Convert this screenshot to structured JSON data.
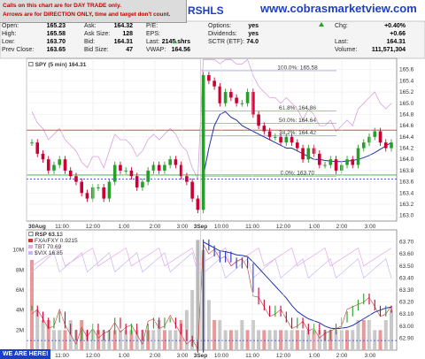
{
  "watermark": "www.cobrasmarketview.com",
  "symbol_fragment": "RSHLS",
  "notes": [
    "Calls on this chart are for DAY TRADE only.",
    "Arrows are for DIRECTION ONLY, time and target don't count."
  ],
  "we_are_here": "WE ARE HERE!",
  "quote": {
    "col1": [
      {
        "label": "Open:",
        "value": "165.23"
      },
      {
        "label": "High:",
        "value": "165.58"
      },
      {
        "label": "Low:",
        "value": "163.70"
      },
      {
        "label": "Prev Close:",
        "value": "163.65"
      }
    ],
    "col2": [
      {
        "label": "Ask:",
        "value": "164.32"
      },
      {
        "label": "Ask Size:",
        "value": "128"
      },
      {
        "label": "Bid:",
        "value": "164.31"
      },
      {
        "label": "Bid Size:",
        "value": "47"
      }
    ],
    "col3": [
      {
        "label": "P/E:",
        "value": ""
      },
      {
        "label": "EPS:",
        "value": ""
      },
      {
        "label": "Last:",
        "value": "2145 shrs"
      },
      {
        "label": "VWAP:",
        "value": "164.56"
      }
    ],
    "col4": [
      {
        "label": "Options:",
        "value": "yes"
      },
      {
        "label": "Dividends:",
        "value": "yes"
      },
      {
        "label": "SCTR (ETF):",
        "value": "74.0"
      }
    ],
    "col5": [
      {
        "label": "Chg:",
        "value": "+0.40%"
      },
      {
        "label": "",
        "value": "+0.66"
      },
      {
        "label": "Last:",
        "value": "164.31"
      },
      {
        "label": "Volume:",
        "value": "111,571,304"
      }
    ]
  },
  "colors": {
    "up": "#2a9d2a",
    "down": "#cc0033",
    "ma": "#2233aa",
    "upper_band": "#d9a0d9",
    "fib": "#7a8cc9",
    "hline_red": "#cc3333",
    "hline_green": "#33aa33",
    "hline_blue": "#3344cc",
    "rsp": "#000000",
    "fxa": "#cc3333",
    "tbt": "#e6a6e6",
    "vix": "#c8b8f0"
  },
  "chart_data": [
    {
      "type": "line",
      "title": "SPY (5 min) 164.31",
      "days": [
        "30Aug",
        "3Sep"
      ],
      "x_ticks": [
        "30Aug",
        "11:00",
        "12:00",
        "1:00",
        "2:00",
        "3:00",
        "3Sep",
        "10:00",
        "11:00",
        "12:00",
        "1:00",
        "2:00",
        "3:00"
      ],
      "ylim": [
        162.9,
        165.8
      ],
      "y_ticks": [
        163.0,
        163.2,
        163.4,
        163.6,
        163.8,
        164.0,
        164.2,
        164.4,
        164.6,
        164.8,
        165.0,
        165.2,
        165.4,
        165.6
      ],
      "series": [
        {
          "name": "SPY",
          "values": [
            164.3,
            164.1,
            164.0,
            163.8,
            163.9,
            164.0,
            163.8,
            163.7,
            163.6,
            163.4,
            163.3,
            163.5,
            163.5,
            163.3,
            163.6,
            163.9,
            163.8,
            163.8,
            163.7,
            163.5,
            163.6,
            163.8,
            163.9,
            163.8,
            163.9,
            164.0,
            163.9,
            163.7,
            163.6,
            163.3,
            163.1,
            165.5,
            165.4,
            165.3,
            165.0,
            165.2,
            165.1,
            165.0,
            165.0,
            165.2,
            164.8,
            164.6,
            164.5,
            164.4,
            164.4,
            164.3,
            164.4,
            164.3,
            164.2,
            164.0,
            164.2,
            164.1,
            163.9,
            163.9,
            164.0,
            163.8,
            163.9,
            164.0,
            163.9,
            164.2,
            164.3,
            164.4,
            164.5,
            164.3,
            164.2,
            164.3
          ]
        }
      ],
      "ma_values": [
        null,
        null,
        null,
        null,
        null,
        null,
        null,
        null,
        null,
        null,
        null,
        null,
        null,
        null,
        null,
        null,
        null,
        null,
        null,
        null,
        null,
        null,
        null,
        null,
        null,
        null,
        null,
        null,
        null,
        null,
        null,
        163.7,
        164.2,
        164.6,
        164.8,
        164.85,
        164.75,
        164.7,
        164.6,
        164.55,
        164.5,
        164.45,
        164.4,
        164.35,
        164.3,
        164.25,
        164.2,
        164.2,
        164.15,
        164.1,
        164.05,
        164.0,
        164.0,
        163.98,
        163.97,
        163.96,
        163.96,
        163.97,
        163.98,
        164.0,
        164.03,
        164.07,
        164.12,
        164.18,
        164.24,
        164.3
      ],
      "hlines": [
        {
          "value": 164.52,
          "color": "red"
        },
        {
          "value": 163.72,
          "color": "green"
        },
        {
          "value": 163.65,
          "color": "blue"
        }
      ],
      "fib_levels": [
        {
          "label": "100.0%: 165.58",
          "value": 165.58
        },
        {
          "label": "61.8%: 164.86",
          "value": 164.86
        },
        {
          "label": "50.0%: 164.64",
          "value": 164.64
        },
        {
          "label": "38.2%: 164.42",
          "value": 164.42
        },
        {
          "label": "0.0%: 163.70",
          "value": 163.7
        }
      ]
    },
    {
      "type": "line",
      "title": "RSP 63.13",
      "legend": [
        "FXA/FXY 0.9215",
        "TBT 70.69",
        "$VIX 16.85"
      ],
      "ylim": [
        62.8,
        63.8
      ],
      "y_ticks": [
        62.9,
        63.0,
        63.1,
        63.2,
        63.3,
        63.4,
        63.5,
        63.6,
        63.7
      ],
      "volume_ticks": [
        "2M",
        "4M",
        "6M",
        "8M",
        "10M"
      ],
      "volume_max": 12,
      "x_ticks": [
        "30Aug",
        "11:00",
        "12:00",
        "1:00",
        "2:00",
        "3:00",
        "3Sep",
        "10:00",
        "11:00",
        "12:00",
        "1:00",
        "2:00",
        "3:00"
      ],
      "rsp_values": [
        63.15,
        63.1,
        63.05,
        63.0,
        63.05,
        63.1,
        63.0,
        62.95,
        62.9,
        62.95,
        62.9,
        63.0,
        62.95,
        62.9,
        62.95,
        63.05,
        63.0,
        62.95,
        63.0,
        62.95,
        62.9,
        63.0,
        63.05,
        63.0,
        63.05,
        63.05,
        63.0,
        62.95,
        62.9,
        62.85,
        62.8,
        63.7,
        63.65,
        63.6,
        63.55,
        63.6,
        63.55,
        63.5,
        63.55,
        63.5,
        63.3,
        63.2,
        63.15,
        63.1,
        63.15,
        63.1,
        63.05,
        63.0,
        63.05,
        63.0,
        62.95,
        63.0,
        62.95,
        62.9,
        62.95,
        63.0,
        63.05,
        63.1,
        63.15,
        63.2,
        63.25,
        63.2,
        63.15,
        63.1,
        63.15,
        63.13
      ],
      "volume": [
        9,
        4,
        3,
        3,
        2,
        2,
        2,
        3,
        2,
        3,
        2,
        2,
        2,
        2,
        2,
        2,
        2,
        2,
        2,
        2,
        2,
        2,
        2,
        3,
        2,
        2,
        2,
        3,
        4,
        6,
        11,
        10,
        5,
        3,
        3,
        2,
        2,
        2,
        3,
        2,
        3,
        2,
        2,
        2,
        2,
        2,
        2,
        2,
        2,
        2,
        2,
        2,
        2,
        2,
        2,
        2,
        2,
        2,
        2,
        3,
        3,
        3,
        2,
        2,
        3,
        4
      ]
    }
  ]
}
